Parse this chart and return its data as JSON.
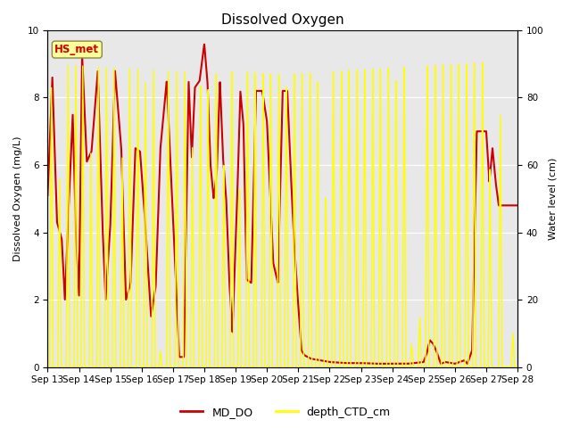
{
  "title": "Dissolved Oxygen",
  "ylabel_left": "Dissolved Oxygen (mg/L)",
  "ylabel_right": "Water level (cm)",
  "ylim_left": [
    0.0,
    10.0
  ],
  "ylim_right": [
    0,
    100
  ],
  "xtick_labels": [
    "Sep 13",
    "Sep 14",
    "Sep 15",
    "Sep 16",
    "Sep 17",
    "Sep 18",
    "Sep 19",
    "Sep 20",
    "Sep 21",
    "Sep 22",
    "Sep 23",
    "Sep 24",
    "Sep 25",
    "Sep 26",
    "Sep 27",
    "Sep 28"
  ],
  "bg_color": "#e8e8e8",
  "legend_label_do": "MD_DO",
  "legend_label_depth": "depth_CTD_cm",
  "annotation_text": "HS_met",
  "annotation_color": "#cc0000",
  "annotation_bg": "#ffff99",
  "do_color": "#cc0000",
  "depth_color": "#ffff00",
  "do_linewidth": 1.5,
  "depth_linewidth": 1.0,
  "title_fontsize": 11,
  "axis_fontsize": 8,
  "tick_fontsize": 7.5
}
